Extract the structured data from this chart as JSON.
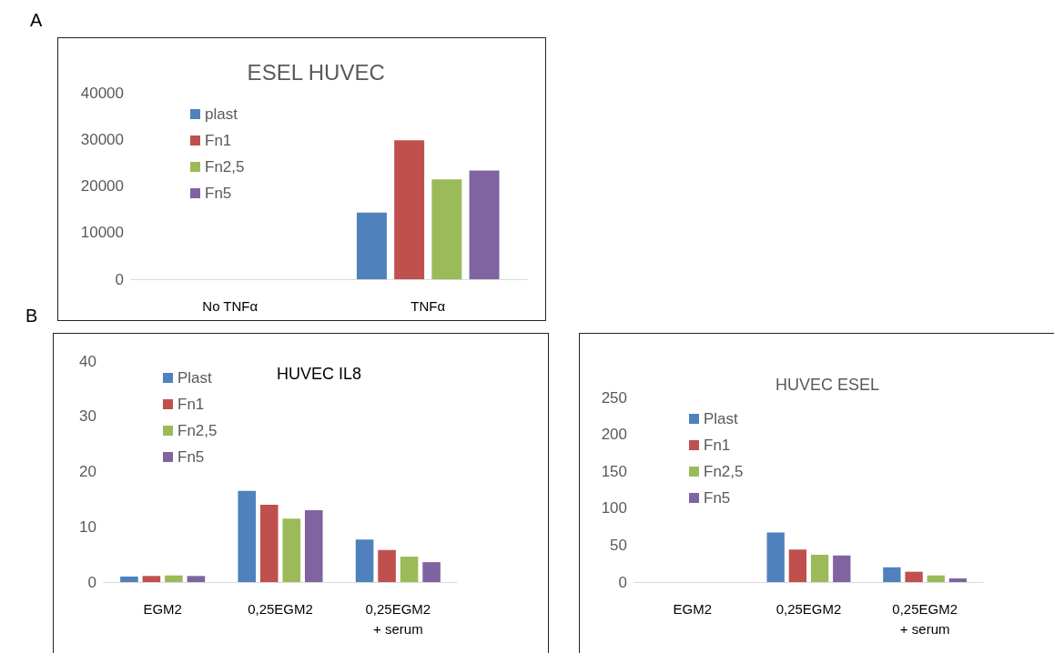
{
  "chart_data": [
    {
      "type": "bar",
      "title": "ESEL HUVEC",
      "annotations": [
        "A"
      ],
      "categories": [
        "No TNFα",
        "TNFα"
      ],
      "series": [
        {
          "name": "plast",
          "color": "#4f81bd",
          "values": [
            0,
            14300
          ]
        },
        {
          "name": "Fn1",
          "color": "#c0504d",
          "values": [
            0,
            29800
          ]
        },
        {
          "name": "Fn2,5",
          "color": "#9bbb59",
          "values": [
            0,
            21400
          ]
        },
        {
          "name": "Fn5",
          "color": "#8064a2",
          "values": [
            0,
            23300
          ]
        }
      ],
      "ylim": [
        0,
        40000
      ],
      "yticks": [
        0,
        10000,
        20000,
        30000,
        40000
      ],
      "grid": false,
      "legend": "top left"
    },
    {
      "type": "bar",
      "title": "HUVEC IL8",
      "annotations": [
        "B"
      ],
      "categories": [
        "EGM2",
        "0,25EGM2",
        "0,25EGM2\n+ serum"
      ],
      "series": [
        {
          "name": "Plast",
          "color": "#4f81bd",
          "values": [
            1,
            16.5,
            7.7
          ]
        },
        {
          "name": "Fn1",
          "color": "#c0504d",
          "values": [
            1.1,
            14,
            5.8
          ]
        },
        {
          "name": "Fn2,5",
          "color": "#9bbb59",
          "values": [
            1.2,
            11.5,
            4.6
          ]
        },
        {
          "name": "Fn5",
          "color": "#8064a2",
          "values": [
            1.1,
            13,
            3.6
          ]
        }
      ],
      "ylim": [
        0,
        40
      ],
      "yticks": [
        0,
        10,
        20,
        30,
        40
      ],
      "grid": false,
      "legend": "top left"
    },
    {
      "type": "bar",
      "title": "HUVEC ESEL",
      "categories": [
        "EGM2",
        "0,25EGM2",
        "0,25EGM2\n+ serum"
      ],
      "series": [
        {
          "name": "Plast",
          "color": "#4f81bd",
          "values": [
            0,
            67,
            20
          ]
        },
        {
          "name": "Fn1",
          "color": "#c0504d",
          "values": [
            0,
            44,
            14
          ]
        },
        {
          "name": "Fn2,5",
          "color": "#9bbb59",
          "values": [
            0,
            37,
            9
          ]
        },
        {
          "name": "Fn5",
          "color": "#8064a2",
          "values": [
            0,
            36,
            5
          ]
        }
      ],
      "ylim": [
        0,
        250
      ],
      "yticks": [
        0,
        50,
        100,
        150,
        200,
        250
      ],
      "grid": false,
      "legend": "top left"
    }
  ]
}
